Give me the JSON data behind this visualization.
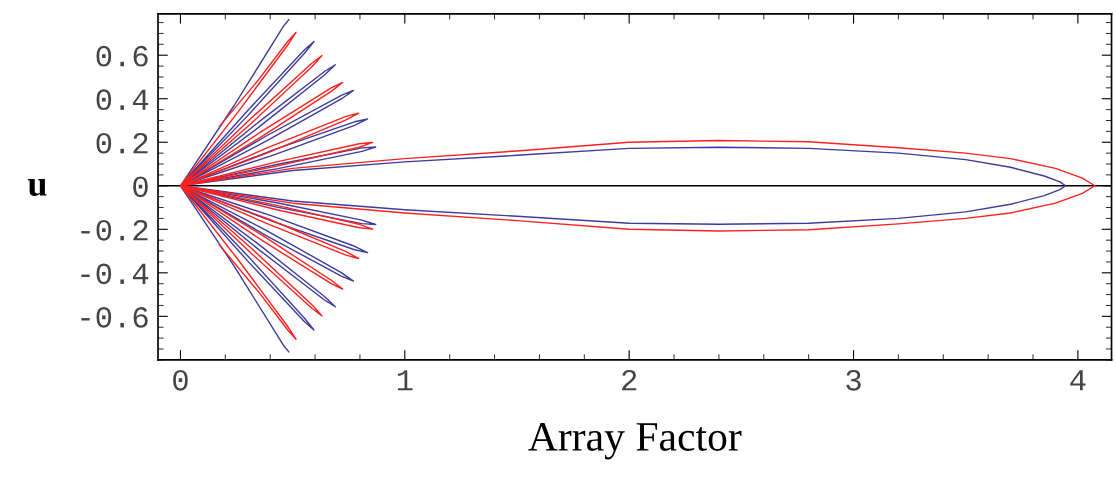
{
  "chart_data": {
    "type": "line",
    "xlabel": "Array Factor",
    "ylabel": "u",
    "xlim": [
      -0.1,
      4.15
    ],
    "ylim": [
      -0.8,
      0.79
    ],
    "xticks": [
      0,
      1,
      2,
      3,
      4
    ],
    "yticks": [
      -0.6,
      -0.4,
      -0.2,
      0,
      0.2,
      0.4,
      0.6
    ],
    "grid": false,
    "marker": "none",
    "line_style": "solid",
    "ref_lines": [
      {
        "axis": "y",
        "value": 0,
        "color": "#000000"
      }
    ],
    "series": [
      {
        "color": "#3c3c9c",
        "x": [
          0.483,
          0.46,
          0.24,
          0,
          0.298,
          0.553,
          0.595,
          0.553,
          0.298,
          0,
          0.345,
          0.642,
          0.69,
          0.642,
          0.345,
          0,
          0.386,
          0.717,
          0.771,
          0.717,
          0.386,
          0,
          0.417,
          0.776,
          0.834,
          0.776,
          0.417,
          0,
          0.435,
          0.809,
          0.87,
          0.809,
          0.435,
          0,
          0.5,
          1.0,
          1.5,
          2.0,
          2.4,
          2.8,
          3.2,
          3.5,
          3.7,
          3.85,
          3.92,
          3.945,
          3.92,
          3.85,
          3.7,
          3.5,
          3.2,
          2.8,
          2.4,
          2.0,
          1.5,
          1.0,
          0.5,
          0,
          0.435,
          0.809,
          0.87,
          0.809,
          0.435,
          0,
          0.417,
          0.776,
          0.834,
          0.776,
          0.417,
          0,
          0.386,
          0.717,
          0.771,
          0.717,
          0.386,
          0,
          0.345,
          0.642,
          0.69,
          0.642,
          0.345,
          0,
          0.298,
          0.553,
          0.595,
          0.553,
          0.298,
          0,
          0.24,
          0.46,
          0.483
        ],
        "values": [
          0.763,
          0.735,
          0.37,
          0,
          0.344,
          0.625,
          0.663,
          0.609,
          0.32,
          0,
          0.29,
          0.525,
          0.556,
          0.509,
          0.266,
          0,
          0.231,
          0.415,
          0.438,
          0.399,
          0.207,
          0,
          0.166,
          0.294,
          0.307,
          0.278,
          0.142,
          0,
          0.099,
          0.174,
          0.178,
          0.158,
          0.079,
          0,
          0.07,
          0.11,
          0.14,
          0.172,
          0.177,
          0.172,
          0.15,
          0.12,
          0.085,
          0.045,
          0.018,
          0,
          -0.018,
          -0.045,
          -0.085,
          -0.12,
          -0.15,
          -0.172,
          -0.177,
          -0.172,
          -0.14,
          -0.11,
          -0.07,
          0,
          -0.079,
          -0.158,
          -0.178,
          -0.174,
          -0.099,
          0,
          -0.142,
          -0.278,
          -0.307,
          -0.294,
          -0.166,
          0,
          -0.207,
          -0.399,
          -0.438,
          -0.415,
          -0.231,
          0,
          -0.266,
          -0.509,
          -0.556,
          -0.525,
          -0.29,
          0,
          -0.32,
          -0.609,
          -0.663,
          -0.625,
          -0.344,
          0,
          -0.37,
          -0.735,
          -0.763
        ]
      },
      {
        "color": "#ff2020",
        "x": [
          0.174,
          0.35,
          0.479,
          0.515,
          0.479,
          0.258,
          0,
          0.316,
          0.587,
          0.631,
          0.587,
          0.316,
          0,
          0.362,
          0.672,
          0.723,
          0.672,
          0.362,
          0,
          0.397,
          0.738,
          0.794,
          0.738,
          0.397,
          0,
          0.429,
          0.797,
          0.857,
          0.797,
          0.429,
          0,
          0.5,
          1.0,
          1.5,
          2.0,
          2.4,
          2.8,
          3.2,
          3.5,
          3.7,
          3.9,
          4.02,
          4.076,
          4.02,
          3.9,
          3.7,
          3.5,
          3.2,
          2.8,
          2.4,
          2.0,
          1.5,
          1.0,
          0.5,
          0,
          0.429,
          0.797,
          0.857,
          0.797,
          0.429,
          0,
          0.397,
          0.738,
          0.794,
          0.738,
          0.397,
          0,
          0.362,
          0.672,
          0.723,
          0.672,
          0.362,
          0,
          0.316,
          0.587,
          0.631,
          0.587,
          0.316,
          0,
          0.258,
          0.479,
          0.515,
          0.479,
          0.35,
          0.174
        ],
        "values": [
          0.273,
          0.49,
          0.664,
          0.705,
          0.648,
          0.341,
          0,
          0.311,
          0.564,
          0.598,
          0.548,
          0.287,
          0,
          0.25,
          0.45,
          0.475,
          0.434,
          0.226,
          0,
          0.179,
          0.319,
          0.334,
          0.303,
          0.155,
          0,
          0.11,
          0.193,
          0.199,
          0.177,
          0.09,
          0,
          0.08,
          0.125,
          0.16,
          0.2,
          0.208,
          0.202,
          0.175,
          0.15,
          0.125,
          0.08,
          0.035,
          0,
          -0.035,
          -0.08,
          -0.125,
          -0.15,
          -0.175,
          -0.202,
          -0.208,
          -0.2,
          -0.16,
          -0.125,
          -0.08,
          0,
          -0.09,
          -0.177,
          -0.199,
          -0.193,
          -0.11,
          0,
          -0.155,
          -0.303,
          -0.334,
          -0.319,
          -0.179,
          0,
          -0.226,
          -0.434,
          -0.475,
          -0.45,
          -0.25,
          0,
          -0.287,
          -0.548,
          -0.598,
          -0.564,
          -0.311,
          0,
          -0.341,
          -0.648,
          -0.705,
          -0.664,
          -0.49,
          -0.273
        ]
      }
    ]
  }
}
